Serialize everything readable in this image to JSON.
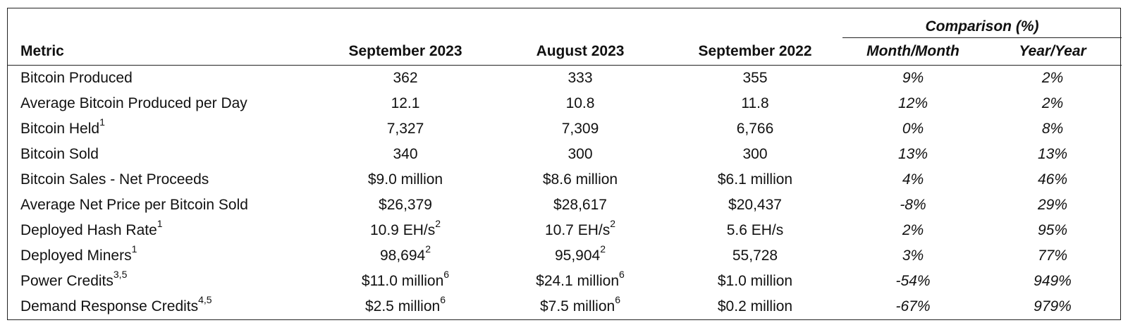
{
  "table": {
    "group_header": "Comparison (%)",
    "headers": [
      "Metric",
      "September 2023",
      "August 2023",
      "September 2022",
      "Month/Month",
      "Year/Year"
    ],
    "rows": [
      {
        "metric": "Bitcoin Produced",
        "metric_sup": "",
        "sep2023": "362",
        "sep2023_sup": "",
        "aug2023": "333",
        "aug2023_sup": "",
        "sep2022": "355",
        "mom": "9%",
        "yoy": "2%"
      },
      {
        "metric": "Average Bitcoin Produced per Day",
        "metric_sup": "",
        "sep2023": "12.1",
        "sep2023_sup": "",
        "aug2023": "10.8",
        "aug2023_sup": "",
        "sep2022": "11.8",
        "mom": "12%",
        "yoy": "2%"
      },
      {
        "metric": "Bitcoin Held",
        "metric_sup": "1",
        "sep2023": "7,327",
        "sep2023_sup": "",
        "aug2023": "7,309",
        "aug2023_sup": "",
        "sep2022": "6,766",
        "mom": "0%",
        "yoy": "8%"
      },
      {
        "metric": "Bitcoin Sold",
        "metric_sup": "",
        "sep2023": "340",
        "sep2023_sup": "",
        "aug2023": "300",
        "aug2023_sup": "",
        "sep2022": "300",
        "mom": "13%",
        "yoy": "13%"
      },
      {
        "metric": "Bitcoin Sales - Net Proceeds",
        "metric_sup": "",
        "sep2023": "$9.0 million",
        "sep2023_sup": "",
        "aug2023": "$8.6 million",
        "aug2023_sup": "",
        "sep2022": "$6.1 million",
        "mom": "4%",
        "yoy": "46%"
      },
      {
        "metric": "Average Net Price per Bitcoin Sold",
        "metric_sup": "",
        "sep2023": "$26,379",
        "sep2023_sup": "",
        "aug2023": "$28,617",
        "aug2023_sup": "",
        "sep2022": "$20,437",
        "mom": "-8%",
        "yoy": "29%"
      },
      {
        "metric": "Deployed Hash Rate",
        "metric_sup": "1",
        "sep2023": "10.9 EH/s",
        "sep2023_sup": "2",
        "aug2023": "10.7 EH/s",
        "aug2023_sup": "2",
        "sep2022": "5.6 EH/s",
        "mom": "2%",
        "yoy": "95%"
      },
      {
        "metric": "Deployed Miners",
        "metric_sup": "1",
        "sep2023": "98,694",
        "sep2023_sup": "2",
        "aug2023": "95,904",
        "aug2023_sup": "2",
        "sep2022": "55,728",
        "mom": "3%",
        "yoy": "77%"
      },
      {
        "metric": "Power Credits",
        "metric_sup": "3,5",
        "sep2023": "$11.0 million",
        "sep2023_sup": "6",
        "aug2023": "$24.1 million",
        "aug2023_sup": "6",
        "sep2022": "$1.0 million",
        "mom": "-54%",
        "yoy": "949%"
      },
      {
        "metric": "Demand Response Credits",
        "metric_sup": "4,5",
        "sep2023": "$2.5 million",
        "sep2023_sup": "6",
        "aug2023": "$7.5 million",
        "aug2023_sup": "6",
        "sep2022": "$0.2 million",
        "mom": "-67%",
        "yoy": "979%"
      }
    ]
  }
}
